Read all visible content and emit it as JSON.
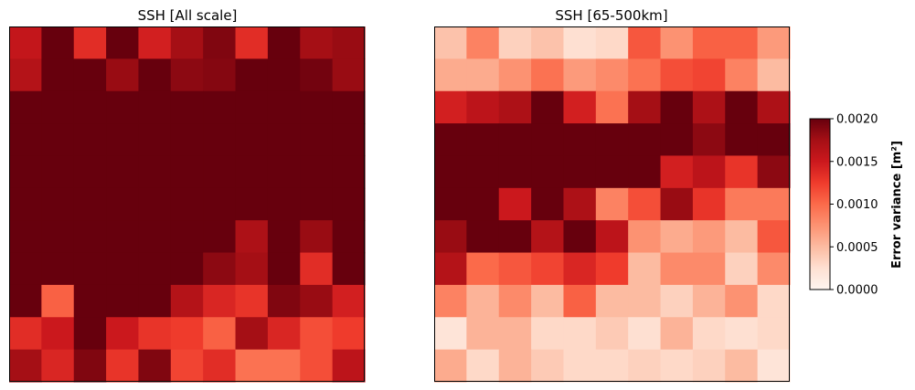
{
  "chart_data": [
    {
      "type": "heatmap",
      "title": "SSH [All scale]",
      "xlabel": "",
      "ylabel": "",
      "vmin": 0.0,
      "vmax": 0.002,
      "cmap": "Reds",
      "grid": false,
      "values": [
        [
          0.00155,
          0.002,
          0.00135,
          0.002,
          0.00145,
          0.00175,
          0.0019,
          0.00135,
          0.002,
          0.00175,
          0.0018
        ],
        [
          0.00165,
          0.002,
          0.002,
          0.0018,
          0.002,
          0.00185,
          0.00188,
          0.002,
          0.002,
          0.00195,
          0.0018
        ],
        [
          0.002,
          0.002,
          0.002,
          0.002,
          0.002,
          0.002,
          0.002,
          0.002,
          0.002,
          0.002,
          0.002
        ],
        [
          0.002,
          0.002,
          0.002,
          0.002,
          0.002,
          0.002,
          0.002,
          0.002,
          0.002,
          0.002,
          0.002
        ],
        [
          0.002,
          0.002,
          0.002,
          0.002,
          0.002,
          0.002,
          0.002,
          0.002,
          0.002,
          0.002,
          0.002
        ],
        [
          0.002,
          0.002,
          0.002,
          0.002,
          0.002,
          0.002,
          0.002,
          0.002,
          0.002,
          0.002,
          0.002
        ],
        [
          0.002,
          0.002,
          0.002,
          0.002,
          0.002,
          0.002,
          0.002,
          0.0017,
          0.002,
          0.0018,
          0.002
        ],
        [
          0.002,
          0.002,
          0.002,
          0.002,
          0.002,
          0.002,
          0.00185,
          0.00175,
          0.002,
          0.00135,
          0.002
        ],
        [
          0.002,
          0.00105,
          0.002,
          0.002,
          0.002,
          0.00165,
          0.0014,
          0.0013,
          0.0019,
          0.0018,
          0.00145
        ],
        [
          0.00135,
          0.0015,
          0.002,
          0.0015,
          0.0013,
          0.00125,
          0.00105,
          0.00175,
          0.0014,
          0.00115,
          0.00125
        ],
        [
          0.00175,
          0.0014,
          0.0019,
          0.0013,
          0.0019,
          0.0012,
          0.00135,
          0.00095,
          0.00095,
          0.00115,
          0.0016
        ]
      ]
    },
    {
      "type": "heatmap",
      "title": "SSH [65-500km]",
      "xlabel": "",
      "ylabel": "",
      "vmin": 0.0,
      "vmax": 0.002,
      "cmap": "Reds",
      "grid": false,
      "values": [
        [
          0.00045,
          0.00085,
          0.00035,
          0.00045,
          0.00025,
          0.0003,
          0.0011,
          0.00075,
          0.00105,
          0.00105,
          0.0007
        ],
        [
          0.0006,
          0.0006,
          0.00075,
          0.00095,
          0.0007,
          0.0008,
          0.00095,
          0.00115,
          0.0012,
          0.00085,
          0.0005
        ],
        [
          0.00145,
          0.0016,
          0.0017,
          0.002,
          0.00145,
          0.00095,
          0.00175,
          0.002,
          0.0017,
          0.002,
          0.0017
        ],
        [
          0.002,
          0.002,
          0.002,
          0.002,
          0.002,
          0.002,
          0.002,
          0.002,
          0.00185,
          0.002,
          0.002
        ],
        [
          0.002,
          0.002,
          0.002,
          0.002,
          0.002,
          0.002,
          0.002,
          0.00145,
          0.0016,
          0.0013,
          0.00185
        ],
        [
          0.002,
          0.002,
          0.0015,
          0.002,
          0.0017,
          0.00085,
          0.00115,
          0.0018,
          0.0013,
          0.0009,
          0.0009
        ],
        [
          0.0018,
          0.002,
          0.002,
          0.00165,
          0.002,
          0.0016,
          0.00075,
          0.0006,
          0.0007,
          0.0005,
          0.0011
        ],
        [
          0.00165,
          0.001,
          0.0011,
          0.0012,
          0.0014,
          0.00125,
          0.0005,
          0.0008,
          0.0008,
          0.00035,
          0.0008
        ],
        [
          0.00085,
          0.00055,
          0.0008,
          0.0005,
          0.00105,
          0.0005,
          0.0005,
          0.00035,
          0.00055,
          0.00075,
          0.0003
        ],
        [
          0.0002,
          0.00055,
          0.00055,
          0.0003,
          0.0003,
          0.0004,
          0.00025,
          0.00055,
          0.0003,
          0.00025,
          0.0003
        ],
        [
          0.0006,
          0.0003,
          0.00055,
          0.0004,
          0.0003,
          0.0003,
          0.00035,
          0.0003,
          0.00035,
          0.0005,
          0.0002
        ]
      ]
    }
  ],
  "colorbar": {
    "label": "Error variance [m$^2$]",
    "label_display": "Error variance [m²]",
    "ticks": [
      "0.0000",
      "0.0005",
      "0.0010",
      "0.0015",
      "0.0020"
    ],
    "tick_values": [
      0.0,
      0.0005,
      0.001,
      0.0015,
      0.002
    ],
    "colors": [
      "#fff5f0",
      "#fee0d2",
      "#fcbba1",
      "#fc9272",
      "#fb6a4a",
      "#ef3b2c",
      "#cb181d",
      "#a50f15",
      "#67000d"
    ]
  }
}
